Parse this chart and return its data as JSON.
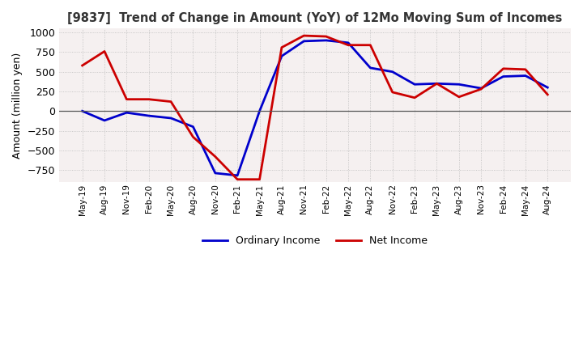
{
  "title": "[9837]  Trend of Change in Amount (YoY) of 12Mo Moving Sum of Incomes",
  "ylabel": "Amount (million yen)",
  "ylim": [
    -900,
    1050
  ],
  "yticks": [
    -750,
    -500,
    -250,
    0,
    250,
    500,
    750,
    1000
  ],
  "x_labels": [
    "May-19",
    "Aug-19",
    "Nov-19",
    "Feb-20",
    "May-20",
    "Aug-20",
    "Nov-20",
    "Feb-21",
    "May-21",
    "Aug-21",
    "Nov-21",
    "Feb-22",
    "May-22",
    "Aug-22",
    "Nov-22",
    "Feb-23",
    "May-23",
    "Aug-23",
    "Nov-23",
    "Feb-24",
    "May-24",
    "Aug-24"
  ],
  "ordinary_income": [
    0,
    -120,
    -20,
    -60,
    -90,
    -200,
    -790,
    -820,
    0,
    700,
    890,
    900,
    870,
    550,
    500,
    340,
    350,
    340,
    290,
    440,
    450,
    300
  ],
  "net_income": [
    580,
    760,
    150,
    150,
    120,
    -330,
    -580,
    -870,
    -870,
    810,
    960,
    950,
    840,
    840,
    240,
    170,
    350,
    180,
    280,
    540,
    530,
    210
  ],
  "ordinary_color": "#0000cc",
  "net_color": "#cc0000",
  "grid_color": "#bbbbbb",
  "bg_color": "#ffffff",
  "plot_bg_color": "#f5f0f0",
  "legend_ordinary": "Ordinary Income",
  "legend_net": "Net Income",
  "line_width": 2.0
}
